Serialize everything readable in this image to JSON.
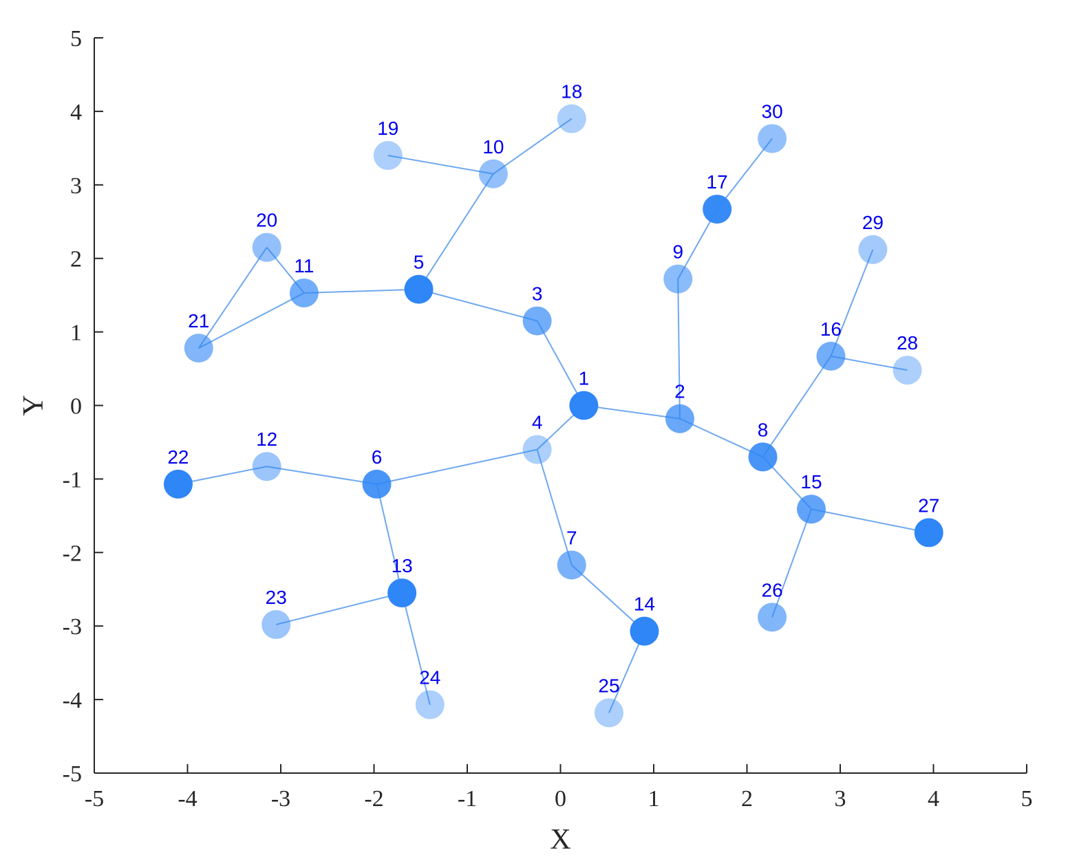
{
  "chart_data": {
    "type": "scatter",
    "subtype": "network-graph",
    "title": "",
    "xlabel": "X",
    "ylabel": "Y",
    "xlim": [
      -5,
      5
    ],
    "ylim": [
      -5,
      5
    ],
    "xticks": [
      "-5",
      "-4",
      "-3",
      "-2",
      "-1",
      "0",
      "1",
      "2",
      "3",
      "4",
      "5"
    ],
    "yticks": [
      "-5",
      "-4",
      "-3",
      "-2",
      "-1",
      "0",
      "1",
      "2",
      "3",
      "4",
      "5"
    ],
    "grid": false,
    "legend": "none",
    "colors": {
      "node": "#2f86f6",
      "edge": "#6fa8f0",
      "label": "#0000ee",
      "axis": "#262626"
    },
    "nodes": [
      {
        "id": "1",
        "x": 0.25,
        "y": 0.0,
        "intensity": 1.0
      },
      {
        "id": "2",
        "x": 1.28,
        "y": -0.18,
        "intensity": 0.65
      },
      {
        "id": "3",
        "x": -0.25,
        "y": 1.15,
        "intensity": 0.6
      },
      {
        "id": "4",
        "x": -0.25,
        "y": -0.6,
        "intensity": 0.25
      },
      {
        "id": "5",
        "x": -1.52,
        "y": 1.58,
        "intensity": 1.0
      },
      {
        "id": "6",
        "x": -1.97,
        "y": -1.07,
        "intensity": 0.85
      },
      {
        "id": "7",
        "x": 0.12,
        "y": -2.17,
        "intensity": 0.55
      },
      {
        "id": "8",
        "x": 2.17,
        "y": -0.7,
        "intensity": 0.85
      },
      {
        "id": "9",
        "x": 1.26,
        "y": 1.72,
        "intensity": 0.45
      },
      {
        "id": "10",
        "x": -0.72,
        "y": 3.15,
        "intensity": 0.4
      },
      {
        "id": "11",
        "x": -2.75,
        "y": 1.53,
        "intensity": 0.6
      },
      {
        "id": "12",
        "x": -3.15,
        "y": -0.83,
        "intensity": 0.35
      },
      {
        "id": "13",
        "x": -1.7,
        "y": -2.55,
        "intensity": 1.0
      },
      {
        "id": "14",
        "x": 0.9,
        "y": -3.07,
        "intensity": 1.0
      },
      {
        "id": "15",
        "x": 2.69,
        "y": -1.41,
        "intensity": 0.7
      },
      {
        "id": "16",
        "x": 2.9,
        "y": 0.67,
        "intensity": 0.6
      },
      {
        "id": "17",
        "x": 1.68,
        "y": 2.67,
        "intensity": 0.95
      },
      {
        "id": "18",
        "x": 0.12,
        "y": 3.9,
        "intensity": 0.25
      },
      {
        "id": "19",
        "x": -1.85,
        "y": 3.4,
        "intensity": 0.25
      },
      {
        "id": "20",
        "x": -3.15,
        "y": 2.15,
        "intensity": 0.4
      },
      {
        "id": "21",
        "x": -3.88,
        "y": 0.78,
        "intensity": 0.5
      },
      {
        "id": "22",
        "x": -4.1,
        "y": -1.07,
        "intensity": 1.0
      },
      {
        "id": "23",
        "x": -3.05,
        "y": -2.98,
        "intensity": 0.35
      },
      {
        "id": "24",
        "x": -1.4,
        "y": -4.07,
        "intensity": 0.25
      },
      {
        "id": "25",
        "x": 0.52,
        "y": -4.18,
        "intensity": 0.25
      },
      {
        "id": "26",
        "x": 2.27,
        "y": -2.88,
        "intensity": 0.5
      },
      {
        "id": "27",
        "x": 3.95,
        "y": -1.73,
        "intensity": 1.0
      },
      {
        "id": "28",
        "x": 3.72,
        "y": 0.48,
        "intensity": 0.25
      },
      {
        "id": "29",
        "x": 3.35,
        "y": 2.12,
        "intensity": 0.3
      },
      {
        "id": "30",
        "x": 2.27,
        "y": 3.63,
        "intensity": 0.4
      }
    ],
    "edges": [
      [
        "1",
        "2"
      ],
      [
        "1",
        "3"
      ],
      [
        "1",
        "4"
      ],
      [
        "3",
        "5"
      ],
      [
        "5",
        "10"
      ],
      [
        "5",
        "11"
      ],
      [
        "10",
        "18"
      ],
      [
        "10",
        "19"
      ],
      [
        "11",
        "20"
      ],
      [
        "11",
        "21"
      ],
      [
        "20",
        "21"
      ],
      [
        "4",
        "6"
      ],
      [
        "4",
        "7"
      ],
      [
        "6",
        "12"
      ],
      [
        "12",
        "22"
      ],
      [
        "6",
        "13"
      ],
      [
        "13",
        "23"
      ],
      [
        "13",
        "24"
      ],
      [
        "7",
        "14"
      ],
      [
        "14",
        "25"
      ],
      [
        "2",
        "9"
      ],
      [
        "9",
        "17"
      ],
      [
        "17",
        "30"
      ],
      [
        "2",
        "8"
      ],
      [
        "8",
        "16"
      ],
      [
        "16",
        "28"
      ],
      [
        "16",
        "29"
      ],
      [
        "8",
        "15"
      ],
      [
        "15",
        "26"
      ],
      [
        "15",
        "27"
      ]
    ]
  }
}
